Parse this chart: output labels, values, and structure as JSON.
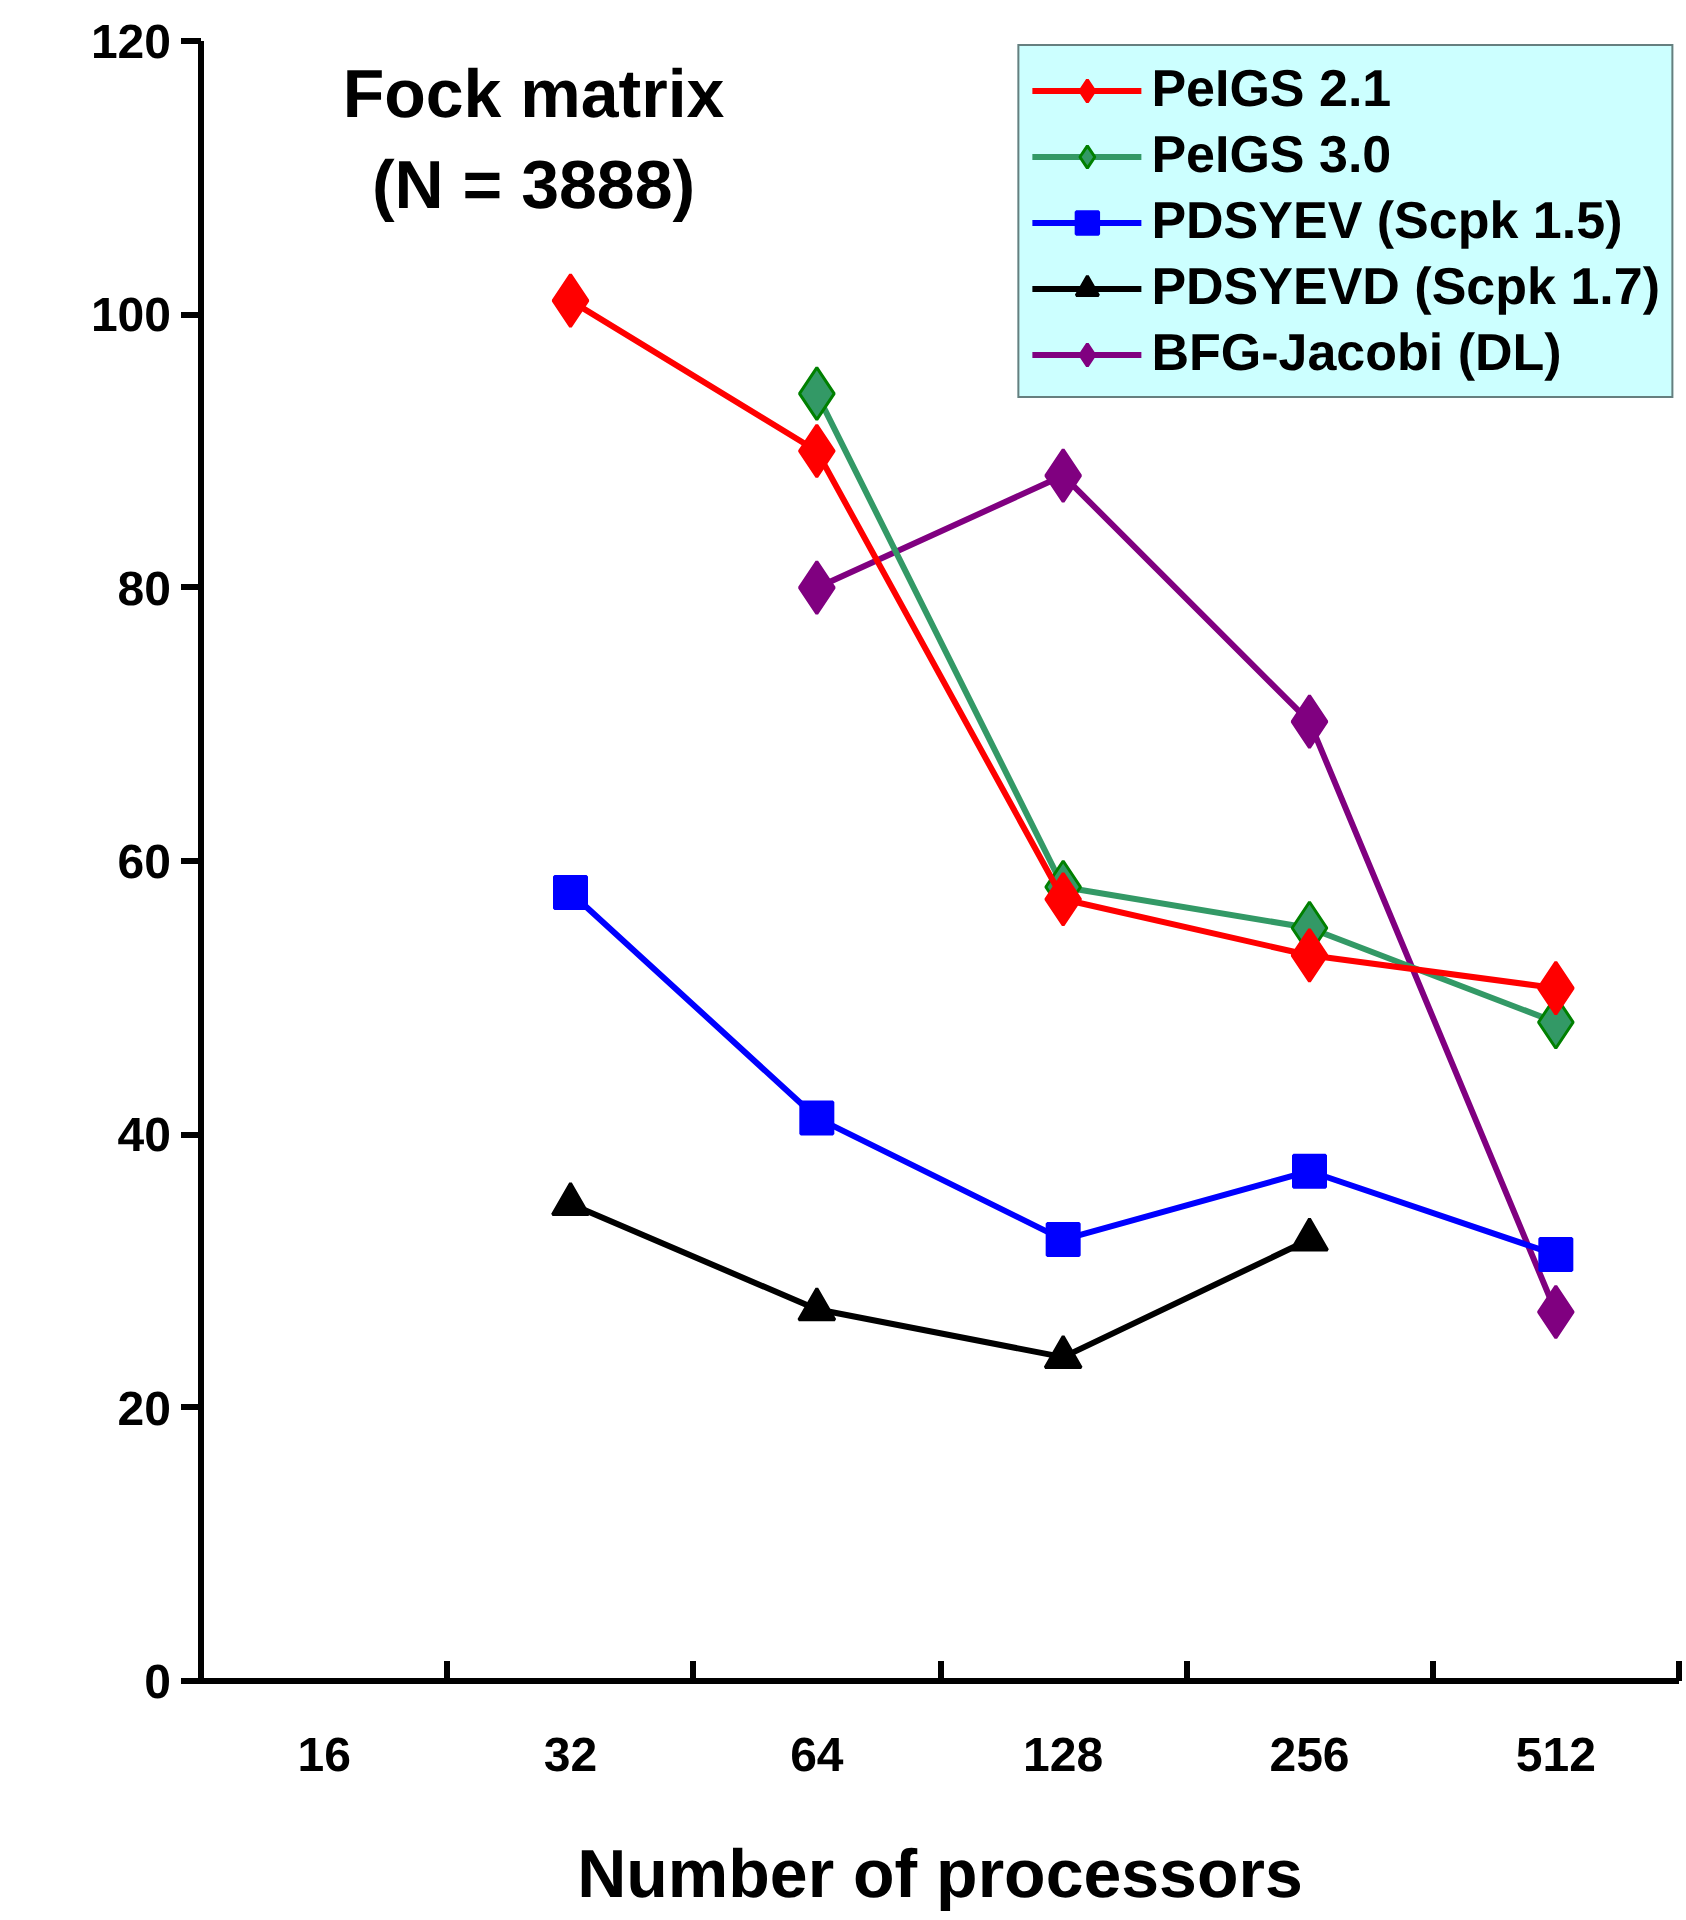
{
  "chart_data": {
    "type": "line",
    "title": "Fock matrix\n(N = 3888)",
    "xlabel": "Number of processors",
    "categories": [
      "16",
      "32",
      "64",
      "128",
      "256",
      "512"
    ],
    "ylim": [
      0,
      120
    ],
    "yticks": [
      0,
      20,
      40,
      60,
      80,
      100,
      120
    ],
    "grid": false,
    "legend": "top right",
    "series": [
      {
        "name": "PeIGS 2.1",
        "color": "#ff0000",
        "marker": "diamond",
        "values": [
          null,
          101,
          90,
          57.2,
          53.1,
          50.7
        ]
      },
      {
        "name": "PeIGS 3.0",
        "color": "#339966",
        "marker": "diamond",
        "values": [
          null,
          null,
          94.2,
          58.1,
          55.1,
          48.2
        ]
      },
      {
        "name": "PDSYEV (Scpk 1.5)",
        "color": "#0000ff",
        "marker": "square",
        "values": [
          null,
          57.7,
          41.2,
          32.3,
          37.3,
          31.2
        ]
      },
      {
        "name": "PDSYEVD (Scpk 1.7)",
        "color": "#000000",
        "marker": "triangle",
        "values": [
          null,
          34.9,
          27.2,
          23.7,
          32.3,
          null
        ]
      },
      {
        "name": "BFG-Jacobi (DL)",
        "color": "#800080",
        "marker": "diamond",
        "values": [
          null,
          null,
          80,
          88.2,
          70.2,
          27
        ]
      }
    ]
  }
}
